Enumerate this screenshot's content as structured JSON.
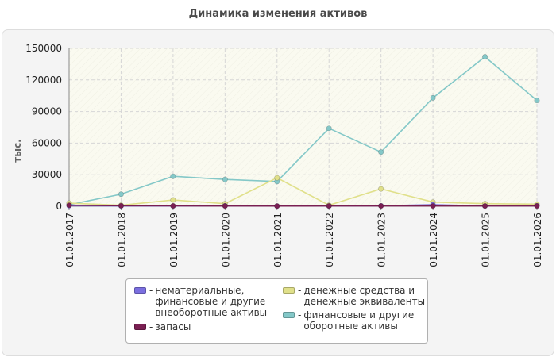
{
  "title": "Динамика изменения активов",
  "chart_data": {
    "type": "line",
    "title": "Динамика изменения активов",
    "ylabel": "тыс.",
    "xlabel": "",
    "x": [
      "01.01.2017",
      "01.01.2018",
      "01.01.2019",
      "01.01.2020",
      "01.01.2021",
      "01.01.2022",
      "01.01.2023",
      "01.01.2024",
      "01.01.2025",
      "01.01.2026"
    ],
    "ylim": [
      0,
      150000
    ],
    "yticks": [
      0,
      30000,
      60000,
      90000,
      120000,
      150000
    ],
    "grid": true,
    "legend_position": "bottom",
    "series": [
      {
        "name": "нематериальные, финансовые и другие внеоборотные активы",
        "color": "#7b6fe0",
        "values": [
          500,
          300,
          300,
          500,
          300,
          300,
          500,
          1500,
          300,
          500
        ]
      },
      {
        "name": "запасы",
        "color": "#7a1f52",
        "values": [
          1000,
          500,
          400,
          300,
          200,
          300,
          300,
          300,
          300,
          300
        ]
      },
      {
        "name": "денежные средства и денежные эквиваленты",
        "color": "#e0e08a",
        "values": [
          3000,
          1000,
          6000,
          2500,
          27000,
          1000,
          16500,
          4000,
          2500,
          2000
        ]
      },
      {
        "name": "финансовые и другие оборотные активы",
        "color": "#84c8c8",
        "values": [
          1500,
          11500,
          28500,
          25500,
          23500,
          74000,
          51500,
          103000,
          142000,
          100500
        ]
      }
    ]
  },
  "legend": {
    "items": [
      {
        "label": "нематериальные,\nфинансовые и другие\nвнеоборотные активы",
        "color": "#7b6fe0"
      },
      {
        "label": "запасы",
        "color": "#7a1f52"
      },
      {
        "label": "денежные средства и\nденежные эквиваленты",
        "color": "#e0e08a"
      },
      {
        "label": "финансовые и другие\nоборотные активы",
        "color": "#84c8c8"
      }
    ]
  }
}
